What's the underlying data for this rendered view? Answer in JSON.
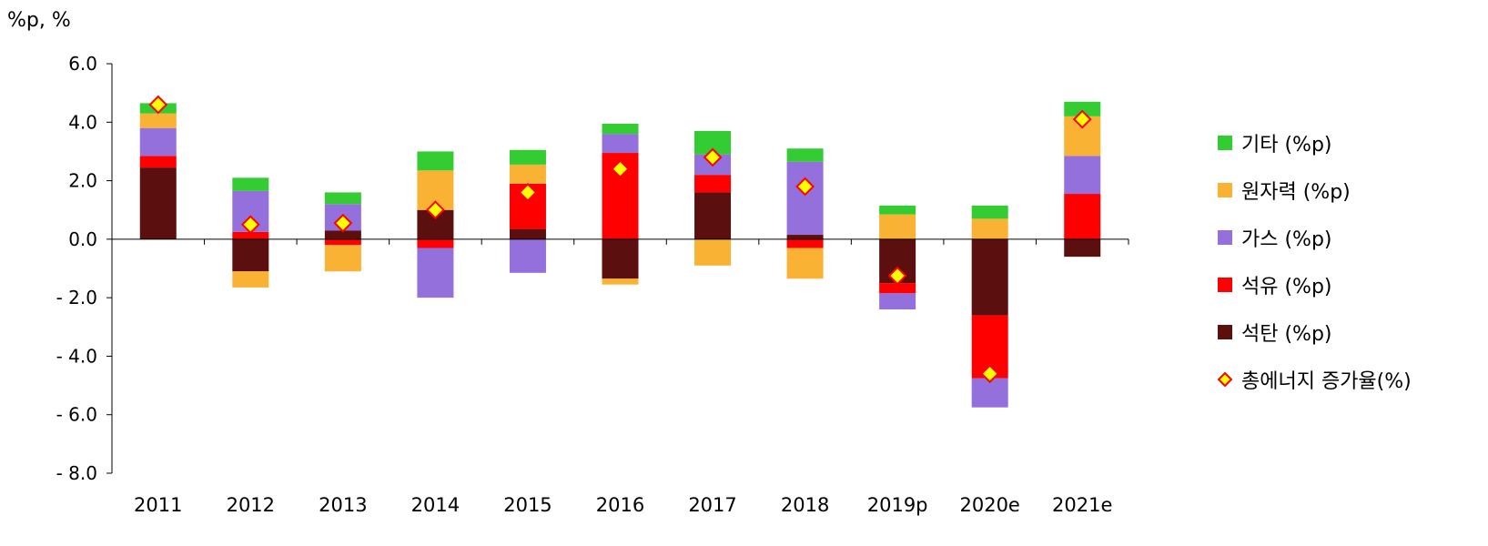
{
  "unit_label": "%p, %",
  "colors": {
    "etc": "#33cc33",
    "nuclear": "#f9b233",
    "gas": "#9370db",
    "oil": "#ff0000",
    "coal": "#5c0f0f",
    "marker_fill": "#ffff00",
    "marker_stroke": "#ff0000"
  },
  "chart_data": {
    "type": "bar",
    "stacked": true,
    "categories": [
      "2011",
      "2012",
      "2013",
      "2014",
      "2015",
      "2016",
      "2017",
      "2018",
      "2019p",
      "2020e",
      "2021e"
    ],
    "y_ticks": [
      "6.0",
      "4.0",
      "2.0",
      "0.0",
      "- 2.0",
      "- 4.0",
      "- 6.0",
      "- 8.0"
    ],
    "ylim": [
      -8,
      6
    ],
    "series": [
      {
        "name": "석탄 (%p)",
        "key": "coal",
        "values": [
          2.45,
          -1.1,
          0.3,
          1.0,
          0.35,
          -1.35,
          1.6,
          0.15,
          -1.5,
          -2.6,
          -0.6
        ]
      },
      {
        "name": "석유 (%p)",
        "key": "oil",
        "values": [
          0.4,
          0.25,
          -0.2,
          -0.3,
          1.55,
          2.95,
          0.6,
          -0.3,
          -0.35,
          -2.15,
          1.55
        ]
      },
      {
        "name": "가스 (%p)",
        "key": "gas",
        "values": [
          0.95,
          1.4,
          0.9,
          -1.7,
          -1.15,
          0.65,
          0.7,
          2.5,
          -0.55,
          -1.0,
          1.3
        ]
      },
      {
        "name": "원자력 (%p)",
        "key": "nuclear",
        "values": [
          0.5,
          -0.55,
          -0.9,
          1.35,
          0.65,
          -0.2,
          -0.9,
          -1.05,
          0.85,
          0.7,
          1.35
        ]
      },
      {
        "name": "기타 (%p)",
        "key": "etc",
        "values": [
          0.35,
          0.45,
          0.4,
          0.65,
          0.5,
          0.35,
          0.8,
          0.45,
          0.3,
          0.45,
          0.5
        ]
      }
    ],
    "total_growth": {
      "name": "총에너지 증가율(%)",
      "values": [
        4.6,
        0.5,
        0.55,
        1.0,
        1.6,
        2.4,
        2.8,
        1.8,
        -1.25,
        -4.6,
        4.1
      ]
    },
    "legend_order": [
      "etc",
      "nuclear",
      "gas",
      "oil",
      "coal"
    ],
    "legend_position": "right"
  }
}
